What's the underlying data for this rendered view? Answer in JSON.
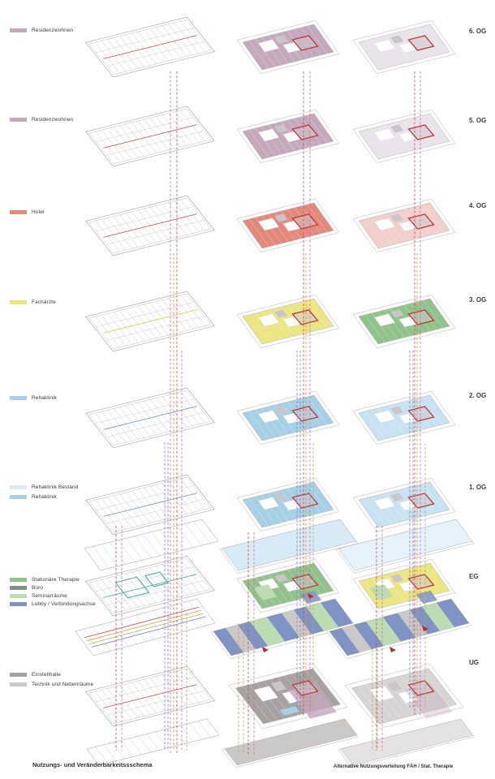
{
  "captions": {
    "left": "Nutzungs- und Veränderbarkeitssschema",
    "right": "Alternative Nutzungsverteilung FÄH / Stat. Therapie"
  },
  "legend": {
    "groups": [
      {
        "items": [
          {
            "label": "Residenzwohnen",
            "color": "#c4a9bd"
          }
        ]
      },
      {
        "items": [
          {
            "label": "Residenzwohnen",
            "color": "#c4a9bd"
          }
        ]
      },
      {
        "items": [
          {
            "label": "Hotel",
            "color": "#e2897c"
          }
        ]
      },
      {
        "items": [
          {
            "label": "Fachärzte",
            "color": "#ebe584"
          }
        ]
      },
      {
        "items": [
          {
            "label": "Rehaklinik",
            "color": "#a6d0e6"
          }
        ]
      },
      {
        "items": [
          {
            "label": "Rehaklinik Bestand",
            "color": "#d7eaf5"
          },
          {
            "label": "Rehaklinik",
            "color": "#a6d0e6"
          }
        ]
      },
      {
        "items": [
          {
            "label": "Stationäre Therapie",
            "color": "#92c28c"
          },
          {
            "label": "Büro",
            "color": "#7f947c"
          },
          {
            "label": "Seminarräume",
            "color": "#bedcb3"
          },
          {
            "label": "Lobby / Verbindungsachse",
            "color": "#7f93c5"
          }
        ]
      },
      {
        "items": [
          {
            "label": "Einstellhalle",
            "color": "#a7a1a1"
          },
          {
            "label": "Technik und Nebenräume",
            "color": "#cbc8c8"
          }
        ]
      }
    ]
  },
  "floors": [
    {
      "id": "6og",
      "label": "6. OG",
      "middle_use": "residenzwohnen",
      "right_use": "residenzwohnen_pale"
    },
    {
      "id": "5og",
      "label": "5. OG",
      "middle_use": "residenzwohnen",
      "right_use": "residenzwohnen_pale"
    },
    {
      "id": "4og",
      "label": "4. OG",
      "middle_use": "hotel",
      "right_use": "hotel_pale"
    },
    {
      "id": "3og",
      "label": "3. OG",
      "middle_use": "fachaerzte",
      "right_use": "stationaere_therapie"
    },
    {
      "id": "2og",
      "label": "2. OG",
      "middle_use": "rehaklinik",
      "right_use": "rehaklinik_pale"
    },
    {
      "id": "1og",
      "label": "1. OG",
      "middle_use": "rehaklinik",
      "right_use": "rehaklinik_pale",
      "middle_strip": "rehaklinik_bestand",
      "right_strip": "rehaklinik_bestand_pale"
    },
    {
      "id": "eg",
      "label": "EG",
      "middle_use": "stationaere_therapie",
      "right_use": "fachaerzte",
      "middle_strip": "lobby",
      "right_strip": "lobby"
    },
    {
      "id": "ug",
      "label": "UG",
      "middle_use": "einstellhalle",
      "right_use": "einstellhalle_pale",
      "middle_strip": "technik",
      "right_strip": "technik_pale"
    }
  ],
  "palette": {
    "residenzwohnen": "#c4a9bd",
    "residenzwohnen_pale": "#e9e3ea",
    "hotel": "#e2897c",
    "hotel_pale": "#f1cfca",
    "fachaerzte": "#ebe584",
    "rehaklinik": "#a6d0e6",
    "rehaklinik_pale": "#c9e2f1",
    "rehaklinik_bestand": "#d7eaf5",
    "rehaklinik_bestand_pale": "#e6f2f9",
    "stationaere_therapie": "#92c28c",
    "buero": "#7f947c",
    "seminarraeume": "#bedcb3",
    "lobby": "#7f93c5",
    "einstellhalle": "#a7a1a1",
    "einstellhalle_pale": "#d7d4d4",
    "technik": "#cbc8c8",
    "technik_pale": "#e4e2e2",
    "core_outline": "#c23535",
    "axis_red": "#c4504f",
    "teal": "#3aa8a0",
    "arrow_red": "#b03030",
    "line_magenta": "#cf6a9e",
    "line_red": "#c34a4a",
    "line_purple": "#8a7ab8",
    "line_blue": "#6b84c0",
    "line_orange": "#e0923f",
    "line_green": "#9ab95c",
    "line_yellow": "#d8c93f",
    "line_corridor_blue": "#5b8fc9"
  }
}
